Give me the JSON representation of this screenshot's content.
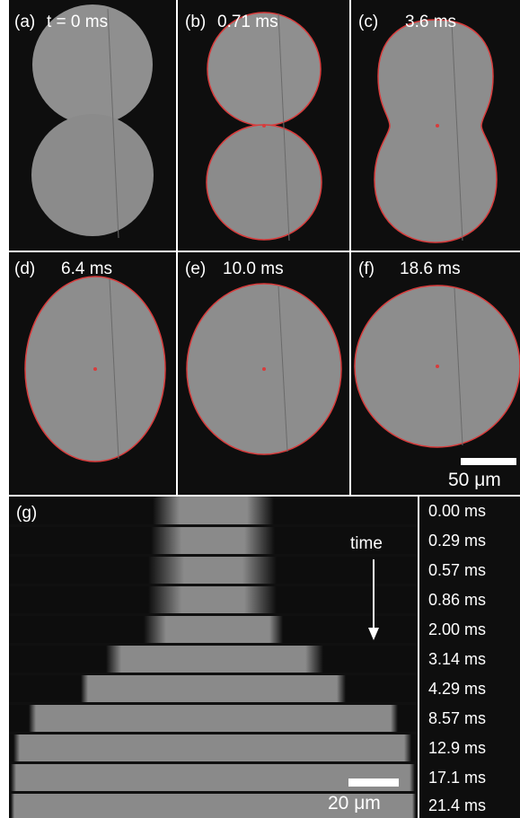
{
  "panels": [
    {
      "label": "(a)",
      "time": "t = 0 ms"
    },
    {
      "label": "(b)",
      "time": "0.71 ms"
    },
    {
      "label": "(c)",
      "time": "3.6 ms"
    },
    {
      "label": "(d)",
      "time": "6.4 ms"
    },
    {
      "label": "(e)",
      "time": "10.0 ms"
    },
    {
      "label": "(f)",
      "time": "18.6 ms"
    }
  ],
  "scale_bar_top": "50 μm",
  "kymograph": {
    "label": "(g)",
    "arrow_label": "time",
    "scale_bar": "20 μm",
    "times": [
      "0.00 ms",
      "0.29 ms",
      "0.57 ms",
      "0.86 ms",
      "2.00 ms",
      "3.14 ms",
      "4.29 ms",
      "8.57 ms",
      "12.9 ms",
      "17.1 ms",
      "21.4 ms"
    ]
  },
  "colors": {
    "background": "#0e0e0e",
    "droplet": "#8c8c8c",
    "contour": "#d83c3c"
  }
}
